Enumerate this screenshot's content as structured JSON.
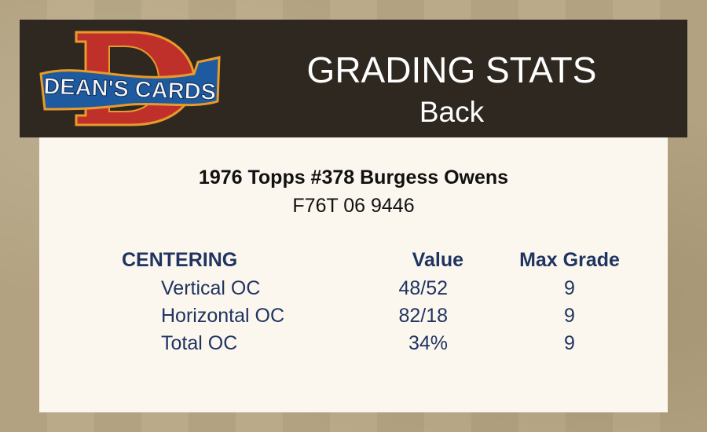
{
  "header": {
    "logo_text": "DEAN'S CARDS",
    "title": "GRADING STATS",
    "subtitle": "Back"
  },
  "card": {
    "title": "1976 Topps #378 Burgess Owens",
    "id": "F76T 06 9446"
  },
  "table": {
    "headers": {
      "category": "CENTERING",
      "value": "Value",
      "max_grade": "Max Grade"
    },
    "rows": [
      {
        "label": "Vertical OC",
        "value": "48/52",
        "max_grade": "9"
      },
      {
        "label": "Horizontal OC",
        "value": "82/18",
        "max_grade": "9"
      },
      {
        "label": "Total OC",
        "value": "34%",
        "max_grade": "9"
      }
    ]
  },
  "colors": {
    "header_bg": "#2e2820",
    "panel_bg": "#fcf7ee",
    "table_text": "#1f3461",
    "logo_red": "#c0302a",
    "logo_blue": "#1d5aa0"
  }
}
